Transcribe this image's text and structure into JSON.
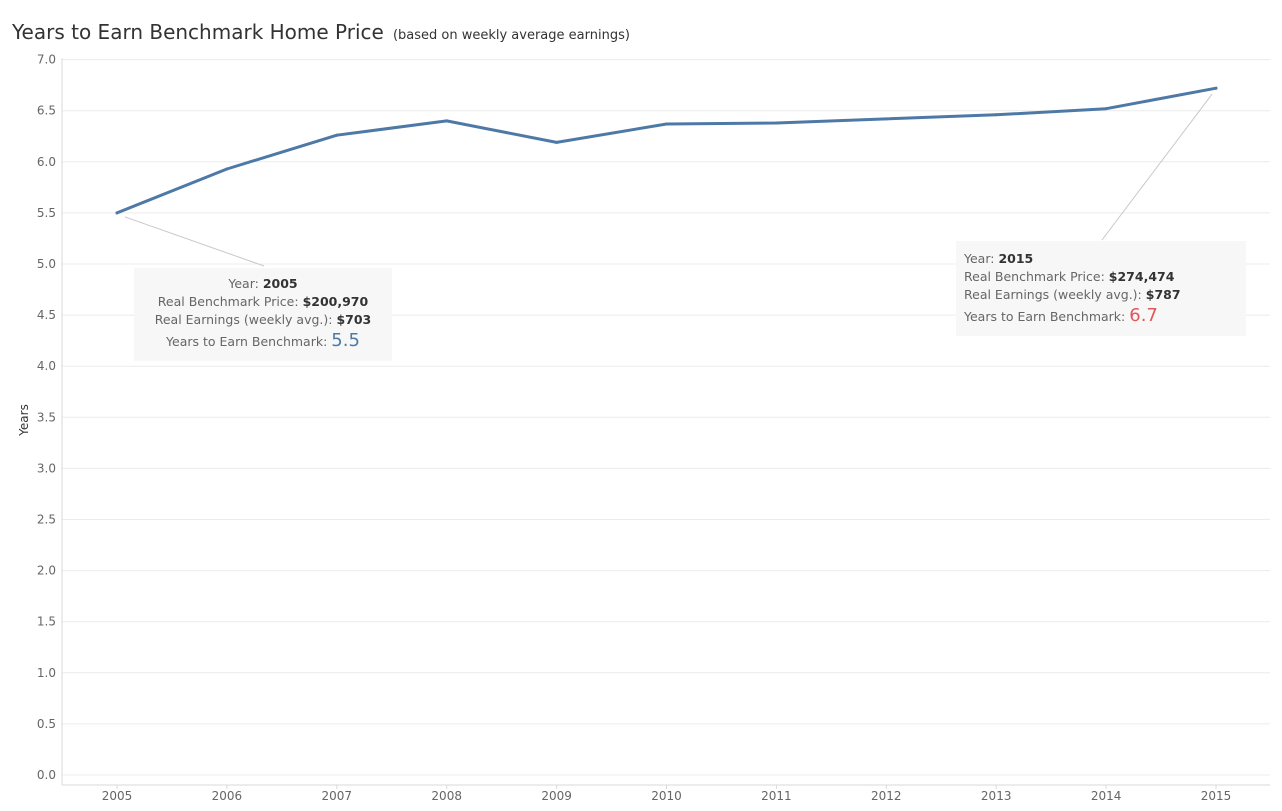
{
  "chart_data": {
    "type": "line",
    "title": "Years to Earn Benchmark Home Price",
    "subtitle": "(based on weekly average earnings)",
    "xlabel": "",
    "ylabel": "Years",
    "categories": [
      "2005",
      "2006",
      "2007",
      "2008",
      "2009",
      "2010",
      "2011",
      "2012",
      "2013",
      "2014",
      "2015"
    ],
    "series": [
      {
        "values": [
          5.5,
          5.93,
          6.26,
          6.4,
          6.19,
          6.37,
          6.38,
          6.42,
          6.46,
          6.52,
          6.72
        ]
      }
    ],
    "ylim": [
      0,
      7
    ],
    "yticks": [
      "0.0",
      "0.5",
      "1.0",
      "1.5",
      "2.0",
      "2.5",
      "3.0",
      "3.5",
      "4.0",
      "4.5",
      "5.0",
      "5.5",
      "6.0",
      "6.5",
      "7.0"
    ],
    "grid": true,
    "line_color": "#4e79a7",
    "annotations": [
      {
        "year_label": "Year:",
        "year": "2005",
        "price_label": "Real Benchmark Price:",
        "price": "$200,970",
        "earnings_label": "Real Earnings (weekly avg.):",
        "earnings": "$703",
        "years_label": "Years to Earn Benchmark:",
        "years": "5.5",
        "value_color": "#4e79a7"
      },
      {
        "year_label": "Year:",
        "year": "2015",
        "price_label": "Real Benchmark Price:",
        "price": "$274,474",
        "earnings_label": "Real Earnings (weekly avg.):",
        "earnings": "$787",
        "years_label": "Years to Earn Benchmark:",
        "years": "6.7",
        "value_color": "#e15759"
      }
    ]
  }
}
